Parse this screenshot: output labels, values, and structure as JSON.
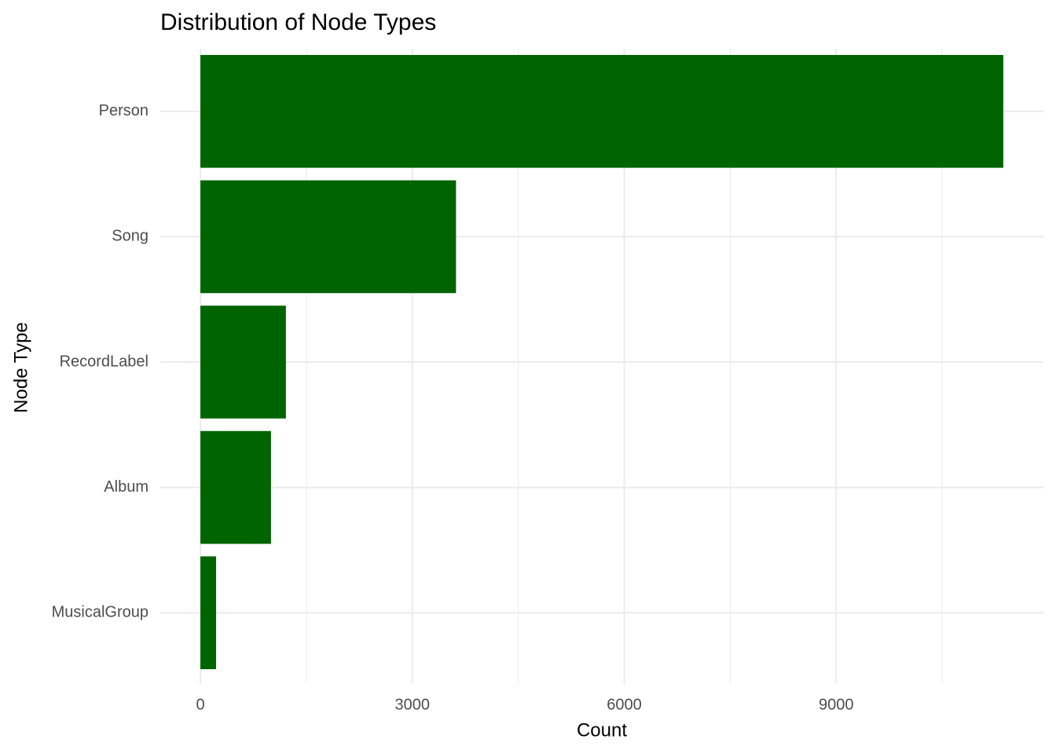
{
  "chart_data": {
    "type": "bar",
    "orientation": "horizontal",
    "title": "Distribution of Node Types",
    "x_label": "Count",
    "y_label": "Node Type",
    "categories": [
      "Person",
      "Song",
      "RecordLabel",
      "Album",
      "MusicalGroup"
    ],
    "values": [
      11365,
      3618,
      1210,
      999,
      222
    ],
    "color": "#006400",
    "xlim": [
      -568,
      11933
    ],
    "xticks": [
      0,
      3000,
      6000,
      9000
    ],
    "x_minor_grid": [
      1500,
      4500,
      7500,
      10500
    ],
    "grid": true
  }
}
